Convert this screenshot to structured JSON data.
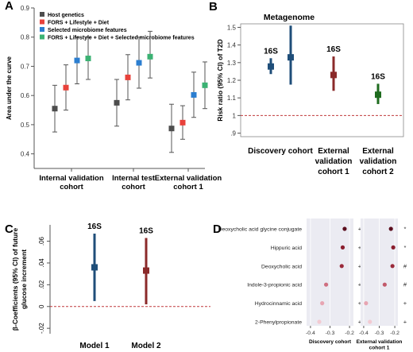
{
  "chart_data": [
    {
      "panel": "A",
      "type": "scatter",
      "title": "",
      "ylabel": "Area under the curve",
      "ylim": [
        0.35,
        0.9
      ],
      "yticks": [
        "0.4",
        "0.5",
        "0.6",
        "0.7",
        "0.8",
        "0.9"
      ],
      "categories": [
        "Internal validation cohort",
        "Internal test cohort",
        "External validation cohort 1"
      ],
      "category_lines": [
        [
          "Internal validation",
          "cohort"
        ],
        [
          "Internal test",
          "cohort"
        ],
        [
          "External validation",
          "cohort 1"
        ]
      ],
      "legend_position": "top-left",
      "series": [
        {
          "name": "Host genetics",
          "color": "#4d4d4d",
          "values": [
            0.555,
            0.575,
            0.487
          ],
          "lower": [
            0.475,
            0.495,
            0.405
          ],
          "upper": [
            0.635,
            0.655,
            0.57
          ]
        },
        {
          "name": "FORS + Lifestyle + Diet",
          "color": "#e8423b",
          "values": [
            0.627,
            0.662,
            0.507
          ],
          "lower": [
            0.55,
            0.585,
            0.45
          ],
          "upper": [
            0.705,
            0.74,
            0.565
          ]
        },
        {
          "name": "Selected microbiome features",
          "color": "#2b7ed0",
          "values": [
            0.72,
            0.712,
            0.602
          ],
          "lower": [
            0.64,
            0.625,
            0.525
          ],
          "upper": [
            0.8,
            0.8,
            0.68
          ]
        },
        {
          "name": "FORS + Lifestyle + Diet + Selected microbiome features",
          "color": "#3bb273",
          "values": [
            0.727,
            0.733,
            0.635
          ],
          "lower": [
            0.655,
            0.66,
            0.555
          ],
          "upper": [
            0.8,
            0.82,
            0.715
          ]
        }
      ]
    },
    {
      "panel": "B",
      "type": "scatter",
      "title": "Metagenome",
      "ylabel": "Risk ratio (95% CI) of T2D",
      "ylim": [
        0.88,
        1.52
      ],
      "yticks": [
        ".9",
        "1",
        "1.1",
        "1.2",
        "1.3",
        "1.4",
        "1.5"
      ],
      "reference_line": 1,
      "categories": [
        "Discovery cohort",
        "External validation cohort 1",
        "External validation cohort 2"
      ],
      "category_lines": [
        [
          "Discovery cohort"
        ],
        [
          "External",
          "validation",
          "cohort 1"
        ],
        [
          "External",
          "validation",
          "cohort 2"
        ]
      ],
      "points": [
        {
          "group": "Discovery cohort",
          "label": "16S",
          "color": "#1f4e79",
          "value": 1.278,
          "lower": 1.235,
          "upper": 1.325
        },
        {
          "group": "Discovery cohort",
          "label": "",
          "color": "#1f4e79",
          "value": 1.33,
          "lower": 1.175,
          "upper": 1.51
        },
        {
          "group": "External validation cohort 1",
          "label": "16S",
          "color": "#8b2a2a",
          "value": 1.23,
          "lower": 1.14,
          "upper": 1.335
        },
        {
          "group": "External validation cohort 2",
          "label": "16S",
          "color": "#1e6b1e",
          "value": 1.118,
          "lower": 1.065,
          "upper": 1.18
        }
      ]
    },
    {
      "panel": "C",
      "type": "scatter",
      "title": "",
      "ylabel": "β-Coefficients (95% CI) of future glucose increment",
      "ylabel_lines": [
        "β-Coefficients (95% CI) of future",
        "glucose increment"
      ],
      "ylim": [
        -0.025,
        0.075
      ],
      "yticks": [
        "-.02",
        "0",
        ".02",
        ".04",
        ".06"
      ],
      "reference_line": 0,
      "categories": [
        "Model 1",
        "Model 2"
      ],
      "points": [
        {
          "group": "Model 1",
          "label": "16S",
          "color": "#1f4e79",
          "value": 0.036,
          "lower": 0.005,
          "upper": 0.067
        },
        {
          "group": "Model 2",
          "label": "16S",
          "color": "#8b2a2a",
          "value": 0.033,
          "lower": 0.002,
          "upper": 0.063
        }
      ]
    },
    {
      "panel": "D",
      "type": "scatter",
      "title": "",
      "xlim": [
        -0.42,
        -0.18
      ],
      "xticks": [
        "-0.4",
        "-0.3",
        "-0.2"
      ],
      "rows": [
        "Deoxycholic acid glycine conjugate",
        "Hippuric acid",
        "Deoxycholic acid",
        "Indole-3-propionic acid",
        "Hydrocinnamic acid",
        "2-Phenylpropionate"
      ],
      "facets": [
        {
          "name": "Discovery cohort",
          "name_lines": [
            "Discovery cohort"
          ],
          "values": [
            -0.225,
            -0.235,
            -0.24,
            -0.32,
            -0.34,
            -0.355
          ],
          "colors": [
            "#5c0f1e",
            "#8b1e2e",
            "#9b2b3b",
            "#cf6f80",
            "#e7a5b2",
            "#f3cad2"
          ],
          "marks": [
            "+",
            "+",
            "+",
            "+",
            "+",
            "+"
          ]
        },
        {
          "name": "External validation cohort 1",
          "name_lines": [
            "External validation",
            "cohort 1"
          ],
          "values": [
            -0.225,
            -0.21,
            -0.215,
            -0.265,
            -0.385,
            -0.36
          ],
          "colors": [
            "#5c0f1e",
            "#8b1e2e",
            "#9b2b3b",
            "#c25a6b",
            "#e7a5b2",
            "#f3cad2"
          ],
          "marks": [
            "*",
            "*",
            "#",
            "#",
            "+",
            "+"
          ]
        }
      ]
    }
  ]
}
